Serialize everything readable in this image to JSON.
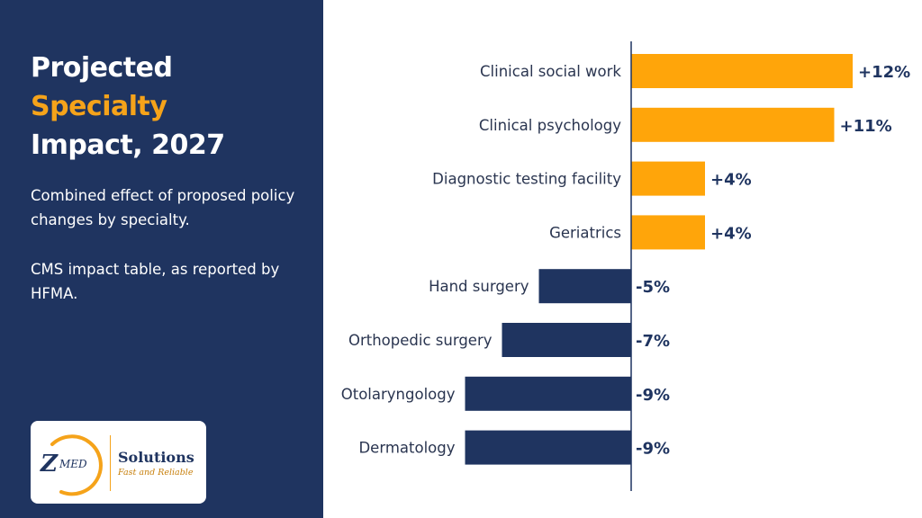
{
  "sidebar": {
    "title_line1": "Projected",
    "title_line2": "Specialty",
    "title_line3": "Impact, 2027",
    "description": "Combined effect of proposed policy changes by specialty.",
    "source": "CMS impact table, as reported by HFMA."
  },
  "logo": {
    "mark": "ZMED",
    "mark_z": "Z",
    "mark_rest": "MED",
    "name": "Solutions",
    "tagline": "Fast and Reliable"
  },
  "colors": {
    "sidebar_bg": "#1f3460",
    "accent": "#f5a31a",
    "positive_bar": "#ffa50a",
    "negative_bar": "#1f3460",
    "axis": "#1f3460"
  },
  "chart_data": {
    "type": "bar",
    "orientation": "horizontal",
    "title": "Projected Specialty Impact, 2027",
    "categories": [
      "Clinical social work",
      "Clinical psychology",
      "Diagnostic testing facility",
      "Geriatrics",
      "Hand surgery",
      "Orthopedic surgery",
      "Otolaryngology",
      "Dermatology"
    ],
    "values": [
      12,
      11,
      4,
      4,
      -5,
      -7,
      -9,
      -9
    ],
    "value_labels": [
      "+12%",
      "+11%",
      "+4%",
      "+4%",
      "-5%",
      "-7%",
      "-9%",
      "-9%"
    ],
    "unit": "%",
    "xlim": [
      -10,
      12
    ],
    "grid": false,
    "legend": "none"
  }
}
